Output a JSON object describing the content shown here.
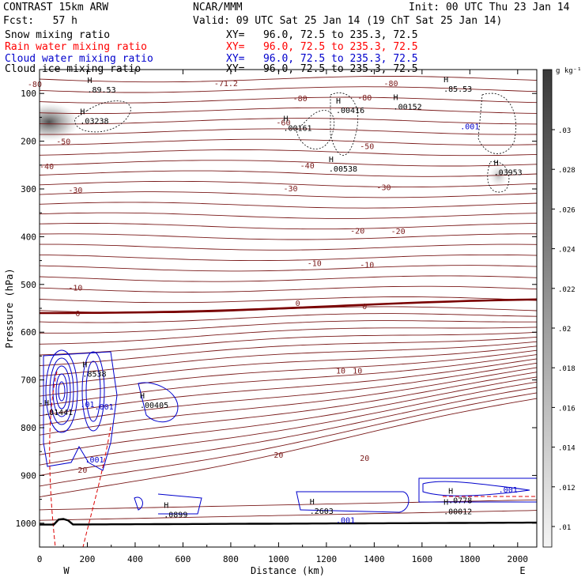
{
  "header": {
    "model": "CONTRAST 15km ARW",
    "org": "NCAR/MMM",
    "init": "Init: 00 UTC Thu 23 Jan 14",
    "fcst": "Fcst:   57 h",
    "valid": "Valid: 09 UTC Sat 25 Jan 14 (19 ChT Sat 25 Jan 14)",
    "fields": [
      {
        "name": "Snow mixing ratio",
        "xy": "XY=   96.0, 72.5 to 235.3, 72.5",
        "color": "#000000"
      },
      {
        "name": "Rain water mixing ratio",
        "xy": "XY=   96.0, 72.5 to 235.3, 72.5",
        "color": "#ff0000"
      },
      {
        "name": "Cloud water mixing ratio",
        "xy": "XY=   96.0, 72.5 to 235.3, 72.5",
        "color": "#0000cc"
      },
      {
        "name": "Cloud ice mixing ratio",
        "xy": "XY=   96.0, 72.5 to 235.3, 72.5",
        "color": "#000000"
      }
    ]
  },
  "chart_data": {
    "type": "cross-section contour",
    "xlabel": "Distance (km)",
    "ylabel": "Pressure (hPa)",
    "xlim": [
      0,
      2080
    ],
    "ylim": [
      1050,
      50
    ],
    "x_ticks": [
      0,
      200,
      400,
      600,
      800,
      1000,
      1200,
      1400,
      1600,
      1800,
      2000
    ],
    "y_ticks": [
      100,
      200,
      300,
      400,
      500,
      600,
      700,
      800,
      900,
      1000
    ],
    "x_end_labels": {
      "left": "W",
      "right": "E"
    },
    "colorbar": {
      "unit": "g kg⁻¹",
      "labels": [
        ".03",
        ".028",
        ".026",
        ".024",
        ".022",
        ".02",
        ".018",
        ".016",
        ".014",
        ".012",
        ".01"
      ]
    },
    "temperature_labels": [
      {
        "t": "-80",
        "x": -20,
        "p": 80
      },
      {
        "t": "-71.2",
        "x": 780,
        "p": 78
      },
      {
        "t": "-80",
        "x": 1470,
        "p": 78
      },
      {
        "t": "-80",
        "x": 1090,
        "p": 110
      },
      {
        "t": "-80",
        "x": 1360,
        "p": 108
      },
      {
        "t": "-60",
        "x": 1020,
        "p": 160
      },
      {
        "t": "-50",
        "x": 100,
        "p": 200
      },
      {
        "t": "-50",
        "x": 1370,
        "p": 210
      },
      {
        "t": "-40",
        "x": 30,
        "p": 252
      },
      {
        "t": "-40",
        "x": 1120,
        "p": 250
      },
      {
        "t": "-30",
        "x": 150,
        "p": 302
      },
      {
        "t": "-30",
        "x": 1050,
        "p": 298
      },
      {
        "t": "-30",
        "x": 1440,
        "p": 296
      },
      {
        "t": "-20",
        "x": 1330,
        "p": 387
      },
      {
        "t": "-20",
        "x": 1500,
        "p": 388
      },
      {
        "t": "-10",
        "x": 1150,
        "p": 455
      },
      {
        "t": "-10",
        "x": 1370,
        "p": 458
      },
      {
        "t": "-10",
        "x": 150,
        "p": 506
      },
      {
        "t": "0",
        "x": 160,
        "p": 560
      },
      {
        "t": "0",
        "x": 1080,
        "p": 538
      },
      {
        "t": "0",
        "x": 1360,
        "p": 545
      },
      {
        "t": "10",
        "x": 1260,
        "p": 680
      },
      {
        "t": "10",
        "x": 1330,
        "p": 680
      },
      {
        "t": "20",
        "x": 1000,
        "p": 856
      },
      {
        "t": "20",
        "x": 1360,
        "p": 863
      },
      {
        "t": "20",
        "x": 180,
        "p": 888
      }
    ],
    "highs": [
      {
        "label": ".03238",
        "x": 170,
        "p": 160
      },
      {
        "label": ".00161",
        "x": 1020,
        "p": 175
      },
      {
        "label": ".00416",
        "x": 1240,
        "p": 138
      },
      {
        "label": ".00152",
        "x": 1480,
        "p": 130
      },
      {
        "label": ".00538",
        "x": 1210,
        "p": 260
      },
      {
        "label": ".03953",
        "x": 1900,
        "p": 268
      },
      {
        "label": ".89.53",
        "x": 200,
        "p": 95
      },
      {
        "label": ".85.53",
        "x": 1690,
        "p": 93
      },
      {
        "label": ".8538",
        "x": 180,
        "p": 690
      },
      {
        "label": ".01441",
        "x": 20,
        "p": 770
      },
      {
        "label": ".00405",
        "x": 420,
        "p": 755
      },
      {
        "label": ".0899",
        "x": 520,
        "p": 985
      },
      {
        "label": ".2603",
        "x": 1130,
        "p": 977
      },
      {
        "label": ".0778",
        "x": 1710,
        "p": 955
      },
      {
        "label": ".00012",
        "x": 1690,
        "p": 978
      }
    ],
    "cloud_water_labels": [
      {
        "t": ".001",
        "x": 270,
        "p": 755
      },
      {
        "t": ".001",
        "x": 230,
        "p": 866
      },
      {
        "t": ".001",
        "x": 1280,
        "p": 993
      },
      {
        "t": ".001",
        "x": 1960,
        "p": 929
      },
      {
        "t": ".001",
        "x": 1800,
        "p": 168
      }
    ],
    "cloud_water_contour_labels": [
      {
        "t": ".01",
        "x": 200,
        "p": 750
      }
    ]
  }
}
